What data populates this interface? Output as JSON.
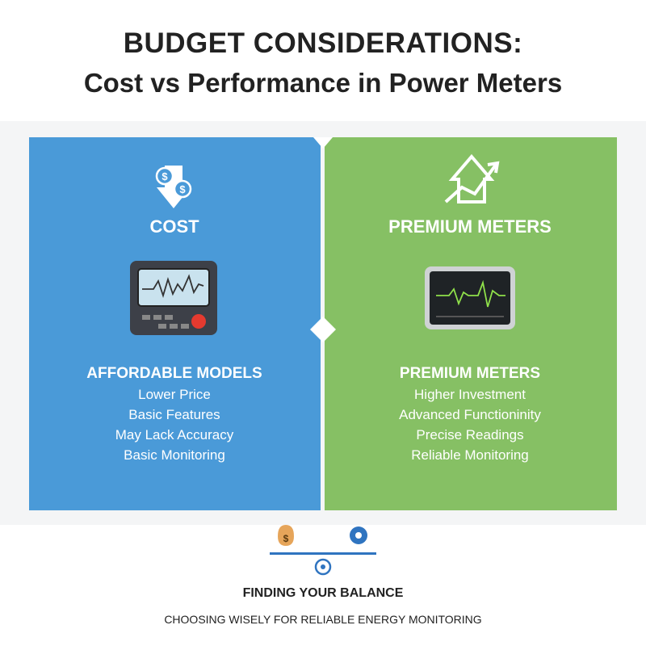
{
  "header": {
    "title": "BUDGET CONSIDERATIONS:",
    "subtitle": "Cost vs Performance in Power Meters"
  },
  "panels": [
    {
      "heading": "COST",
      "subheading": "AFFORDABLE MODELS",
      "items": [
        "Lower Price",
        "Basic Features",
        "May Lack Accuracy",
        "Basic Monitoring"
      ]
    },
    {
      "heading": "PREMIUM METERS",
      "subheading": "PREMIUM METERS",
      "items": [
        "Higher Investment",
        "Advanced Functioninity",
        "Precise Readings",
        "Reliable Monitoring"
      ]
    }
  ],
  "footer": {
    "heading": "FINDING YOUR BALANCE",
    "tagline": "CHOOSING WISELY FOR RELIABLE ENERGY MONITORING"
  }
}
